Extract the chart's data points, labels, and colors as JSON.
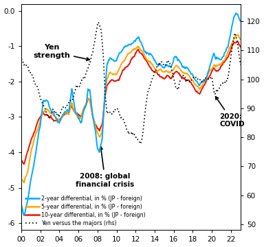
{
  "xlim": [
    2000,
    2023
  ],
  "ylim_left": [
    -6.2,
    0.2
  ],
  "ylim_right": [
    48,
    126
  ],
  "xticks": [
    2000,
    2002,
    2004,
    2006,
    2008,
    2010,
    2012,
    2014,
    2016,
    2018,
    2020,
    2022
  ],
  "xticklabels": [
    "00",
    "02",
    "04",
    "06",
    "08",
    "10",
    "12",
    "14",
    "16",
    "18",
    "20",
    "22"
  ],
  "yticks_left": [
    0.0,
    -1.0,
    -2.0,
    -3.0,
    -4.0,
    -5.0,
    -6.0
  ],
  "yticks_right": [
    50,
    60,
    70,
    80,
    90,
    100,
    110,
    120
  ],
  "color_2yr": "#00AAFF",
  "color_5yr": "#FFA500",
  "color_10yr": "#EE1100",
  "color_yen": "#000000",
  "legend_entries": [
    "2-year differential, in % (JP - foreign)",
    "5-year differential, in % (JP - foreign)",
    "10-year differential, in % (JP - foreign)",
    "Yen versus the majors (rhs)"
  ],
  "diff2_pts": [
    [
      2000.0,
      -5.5
    ],
    [
      2000.3,
      -5.8
    ],
    [
      2000.7,
      -5.3
    ],
    [
      2001.0,
      -4.8
    ],
    [
      2001.5,
      -4.0
    ],
    [
      2002.0,
      -3.2
    ],
    [
      2002.3,
      -2.6
    ],
    [
      2002.7,
      -2.5
    ],
    [
      2003.0,
      -2.7
    ],
    [
      2003.5,
      -3.0
    ],
    [
      2004.0,
      -3.2
    ],
    [
      2004.3,
      -3.0
    ],
    [
      2004.5,
      -2.9
    ],
    [
      2004.8,
      -2.8
    ],
    [
      2005.0,
      -2.9
    ],
    [
      2005.3,
      -2.2
    ],
    [
      2005.7,
      -2.9
    ],
    [
      2006.0,
      -3.0
    ],
    [
      2006.3,
      -3.1
    ],
    [
      2006.5,
      -2.8
    ],
    [
      2006.8,
      -2.6
    ],
    [
      2007.0,
      -2.2
    ],
    [
      2007.2,
      -2.3
    ],
    [
      2007.5,
      -3.0
    ],
    [
      2007.8,
      -3.4
    ],
    [
      2008.0,
      -3.9
    ],
    [
      2008.2,
      -4.0
    ],
    [
      2008.5,
      -3.6
    ],
    [
      2008.8,
      -2.2
    ],
    [
      2009.0,
      -1.5
    ],
    [
      2009.3,
      -1.3
    ],
    [
      2009.7,
      -1.4
    ],
    [
      2010.0,
      -1.4
    ],
    [
      2010.3,
      -1.2
    ],
    [
      2010.7,
      -1.1
    ],
    [
      2011.0,
      -1.0
    ],
    [
      2011.3,
      -0.95
    ],
    [
      2011.7,
      -0.9
    ],
    [
      2012.0,
      -0.85
    ],
    [
      2012.3,
      -0.75
    ],
    [
      2012.5,
      -0.9
    ],
    [
      2012.8,
      -1.0
    ],
    [
      2013.0,
      -1.1
    ],
    [
      2013.3,
      -1.2
    ],
    [
      2013.7,
      -1.3
    ],
    [
      2014.0,
      -1.4
    ],
    [
      2014.3,
      -1.5
    ],
    [
      2014.7,
      -1.55
    ],
    [
      2015.0,
      -1.6
    ],
    [
      2015.3,
      -1.5
    ],
    [
      2015.7,
      -1.55
    ],
    [
      2016.0,
      -1.4
    ],
    [
      2016.3,
      -1.3
    ],
    [
      2016.5,
      -1.35
    ],
    [
      2016.8,
      -1.5
    ],
    [
      2017.0,
      -1.55
    ],
    [
      2017.3,
      -1.6
    ],
    [
      2017.7,
      -1.65
    ],
    [
      2018.0,
      -1.8
    ],
    [
      2018.3,
      -2.0
    ],
    [
      2018.7,
      -2.1
    ],
    [
      2019.0,
      -2.0
    ],
    [
      2019.3,
      -1.9
    ],
    [
      2019.7,
      -1.6
    ],
    [
      2020.0,
      -1.4
    ],
    [
      2020.2,
      -1.2
    ],
    [
      2020.4,
      -1.4
    ],
    [
      2020.7,
      -1.3
    ],
    [
      2021.0,
      -1.35
    ],
    [
      2021.3,
      -1.2
    ],
    [
      2021.7,
      -1.0
    ],
    [
      2022.0,
      -0.6
    ],
    [
      2022.3,
      -0.2
    ],
    [
      2022.5,
      -0.05
    ],
    [
      2022.7,
      -0.1
    ],
    [
      2023.0,
      -0.3
    ]
  ],
  "diff5_pts": [
    [
      2000.0,
      -4.7
    ],
    [
      2000.3,
      -4.9
    ],
    [
      2000.7,
      -4.5
    ],
    [
      2001.0,
      -4.0
    ],
    [
      2001.5,
      -3.5
    ],
    [
      2002.0,
      -3.1
    ],
    [
      2002.3,
      -2.8
    ],
    [
      2002.7,
      -2.8
    ],
    [
      2003.0,
      -2.9
    ],
    [
      2003.5,
      -3.0
    ],
    [
      2004.0,
      -3.1
    ],
    [
      2004.3,
      -3.0
    ],
    [
      2004.5,
      -2.95
    ],
    [
      2004.8,
      -2.9
    ],
    [
      2005.0,
      -2.95
    ],
    [
      2005.3,
      -2.6
    ],
    [
      2005.7,
      -2.9
    ],
    [
      2006.0,
      -3.0
    ],
    [
      2006.3,
      -3.0
    ],
    [
      2006.5,
      -2.8
    ],
    [
      2006.8,
      -2.6
    ],
    [
      2007.0,
      -2.4
    ],
    [
      2007.2,
      -2.5
    ],
    [
      2007.5,
      -3.0
    ],
    [
      2007.8,
      -3.3
    ],
    [
      2008.0,
      -3.5
    ],
    [
      2008.2,
      -3.6
    ],
    [
      2008.5,
      -3.4
    ],
    [
      2008.8,
      -2.3
    ],
    [
      2009.0,
      -1.9
    ],
    [
      2009.3,
      -1.7
    ],
    [
      2009.7,
      -1.8
    ],
    [
      2010.0,
      -1.8
    ],
    [
      2010.3,
      -1.6
    ],
    [
      2010.7,
      -1.4
    ],
    [
      2011.0,
      -1.3
    ],
    [
      2011.3,
      -1.2
    ],
    [
      2011.7,
      -1.1
    ],
    [
      2012.0,
      -1.05
    ],
    [
      2012.3,
      -1.0
    ],
    [
      2012.5,
      -1.1
    ],
    [
      2012.8,
      -1.2
    ],
    [
      2013.0,
      -1.3
    ],
    [
      2013.3,
      -1.4
    ],
    [
      2013.7,
      -1.5
    ],
    [
      2014.0,
      -1.6
    ],
    [
      2014.3,
      -1.65
    ],
    [
      2014.7,
      -1.7
    ],
    [
      2015.0,
      -1.75
    ],
    [
      2015.3,
      -1.7
    ],
    [
      2015.7,
      -1.75
    ],
    [
      2016.0,
      -1.65
    ],
    [
      2016.3,
      -1.55
    ],
    [
      2016.5,
      -1.6
    ],
    [
      2016.8,
      -1.7
    ],
    [
      2017.0,
      -1.75
    ],
    [
      2017.3,
      -1.8
    ],
    [
      2017.7,
      -1.85
    ],
    [
      2018.0,
      -1.95
    ],
    [
      2018.3,
      -2.1
    ],
    [
      2018.7,
      -2.2
    ],
    [
      2019.0,
      -2.1
    ],
    [
      2019.3,
      -2.0
    ],
    [
      2019.7,
      -1.75
    ],
    [
      2020.0,
      -1.6
    ],
    [
      2020.2,
      -1.5
    ],
    [
      2020.4,
      -1.6
    ],
    [
      2020.7,
      -1.5
    ],
    [
      2021.0,
      -1.5
    ],
    [
      2021.3,
      -1.4
    ],
    [
      2021.7,
      -1.2
    ],
    [
      2022.0,
      -1.0
    ],
    [
      2022.3,
      -0.8
    ],
    [
      2022.5,
      -0.7
    ],
    [
      2022.7,
      -0.65
    ],
    [
      2023.0,
      -0.8
    ]
  ],
  "diff10_pts": [
    [
      2000.0,
      -4.2
    ],
    [
      2000.3,
      -4.3
    ],
    [
      2000.7,
      -4.0
    ],
    [
      2001.0,
      -3.7
    ],
    [
      2001.5,
      -3.3
    ],
    [
      2002.0,
      -3.0
    ],
    [
      2002.3,
      -2.85
    ],
    [
      2002.7,
      -2.9
    ],
    [
      2003.0,
      -3.0
    ],
    [
      2003.5,
      -3.1
    ],
    [
      2004.0,
      -3.1
    ],
    [
      2004.3,
      -3.0
    ],
    [
      2004.5,
      -2.95
    ],
    [
      2004.8,
      -2.9
    ],
    [
      2005.0,
      -2.9
    ],
    [
      2005.3,
      -2.7
    ],
    [
      2005.7,
      -2.9
    ],
    [
      2006.0,
      -2.95
    ],
    [
      2006.3,
      -3.0
    ],
    [
      2006.5,
      -2.85
    ],
    [
      2006.8,
      -2.65
    ],
    [
      2007.0,
      -2.5
    ],
    [
      2007.2,
      -2.55
    ],
    [
      2007.5,
      -3.0
    ],
    [
      2007.8,
      -3.2
    ],
    [
      2008.0,
      -3.3
    ],
    [
      2008.2,
      -3.35
    ],
    [
      2008.5,
      -3.2
    ],
    [
      2008.8,
      -2.4
    ],
    [
      2009.0,
      -2.1
    ],
    [
      2009.3,
      -1.95
    ],
    [
      2009.7,
      -2.0
    ],
    [
      2010.0,
      -2.0
    ],
    [
      2010.3,
      -1.9
    ],
    [
      2010.7,
      -1.7
    ],
    [
      2011.0,
      -1.6
    ],
    [
      2011.3,
      -1.5
    ],
    [
      2011.7,
      -1.35
    ],
    [
      2012.0,
      -1.2
    ],
    [
      2012.3,
      -1.1
    ],
    [
      2012.5,
      -1.2
    ],
    [
      2012.8,
      -1.3
    ],
    [
      2013.0,
      -1.4
    ],
    [
      2013.3,
      -1.5
    ],
    [
      2013.7,
      -1.65
    ],
    [
      2014.0,
      -1.75
    ],
    [
      2014.3,
      -1.8
    ],
    [
      2014.7,
      -1.85
    ],
    [
      2015.0,
      -1.9
    ],
    [
      2015.3,
      -1.85
    ],
    [
      2015.7,
      -1.9
    ],
    [
      2016.0,
      -1.8
    ],
    [
      2016.3,
      -1.7
    ],
    [
      2016.5,
      -1.75
    ],
    [
      2016.8,
      -1.85
    ],
    [
      2017.0,
      -1.9
    ],
    [
      2017.3,
      -1.95
    ],
    [
      2017.7,
      -2.0
    ],
    [
      2018.0,
      -2.1
    ],
    [
      2018.3,
      -2.25
    ],
    [
      2018.7,
      -2.35
    ],
    [
      2019.0,
      -2.2
    ],
    [
      2019.3,
      -2.05
    ],
    [
      2019.7,
      -1.85
    ],
    [
      2020.0,
      -1.7
    ],
    [
      2020.2,
      -1.6
    ],
    [
      2020.4,
      -1.7
    ],
    [
      2020.7,
      -1.65
    ],
    [
      2021.0,
      -1.6
    ],
    [
      2021.3,
      -1.5
    ],
    [
      2021.7,
      -1.3
    ],
    [
      2022.0,
      -1.1
    ],
    [
      2022.3,
      -0.95
    ],
    [
      2022.5,
      -0.9
    ],
    [
      2022.7,
      -0.85
    ],
    [
      2023.0,
      -1.0
    ]
  ],
  "yen_pts": [
    [
      2000.0,
      107
    ],
    [
      2000.3,
      105
    ],
    [
      2000.7,
      104
    ],
    [
      2001.0,
      102
    ],
    [
      2001.3,
      99
    ],
    [
      2001.7,
      97
    ],
    [
      2002.0,
      94
    ],
    [
      2002.3,
      91
    ],
    [
      2002.5,
      89
    ],
    [
      2002.7,
      87
    ],
    [
      2003.0,
      87
    ],
    [
      2003.3,
      89
    ],
    [
      2003.7,
      88
    ],
    [
      2004.0,
      88
    ],
    [
      2004.3,
      90
    ],
    [
      2004.7,
      91
    ],
    [
      2005.0,
      92
    ],
    [
      2005.3,
      93
    ],
    [
      2005.7,
      96
    ],
    [
      2006.0,
      97
    ],
    [
      2006.3,
      99
    ],
    [
      2006.7,
      101
    ],
    [
      2007.0,
      103
    ],
    [
      2007.3,
      107
    ],
    [
      2007.5,
      110
    ],
    [
      2007.7,
      114
    ],
    [
      2007.9,
      117
    ],
    [
      2008.0,
      119
    ],
    [
      2008.2,
      119
    ],
    [
      2008.4,
      116
    ],
    [
      2008.6,
      108
    ],
    [
      2008.8,
      95
    ],
    [
      2009.0,
      88
    ],
    [
      2009.3,
      89
    ],
    [
      2009.7,
      89
    ],
    [
      2010.0,
      90
    ],
    [
      2010.3,
      88
    ],
    [
      2010.7,
      86
    ],
    [
      2011.0,
      84
    ],
    [
      2011.3,
      82
    ],
    [
      2011.7,
      81
    ],
    [
      2012.0,
      80
    ],
    [
      2012.3,
      79
    ],
    [
      2012.5,
      78
    ],
    [
      2012.7,
      80
    ],
    [
      2013.0,
      88
    ],
    [
      2013.3,
      96
    ],
    [
      2013.7,
      99
    ],
    [
      2014.0,
      102
    ],
    [
      2014.3,
      104
    ],
    [
      2014.7,
      106
    ],
    [
      2015.0,
      105
    ],
    [
      2015.3,
      106
    ],
    [
      2015.7,
      104
    ],
    [
      2016.0,
      100
    ],
    [
      2016.3,
      97
    ],
    [
      2016.5,
      96
    ],
    [
      2016.7,
      100
    ],
    [
      2017.0,
      101
    ],
    [
      2017.3,
      100
    ],
    [
      2017.7,
      99
    ],
    [
      2018.0,
      100
    ],
    [
      2018.3,
      101
    ],
    [
      2018.7,
      100
    ],
    [
      2019.0,
      100
    ],
    [
      2019.3,
      100
    ],
    [
      2019.7,
      100
    ],
    [
      2020.0,
      100
    ],
    [
      2020.2,
      96
    ],
    [
      2020.3,
      95
    ],
    [
      2020.5,
      97
    ],
    [
      2020.7,
      97
    ],
    [
      2021.0,
      98
    ],
    [
      2021.3,
      99
    ],
    [
      2021.7,
      100
    ],
    [
      2022.0,
      108
    ],
    [
      2022.2,
      113
    ],
    [
      2022.4,
      116
    ],
    [
      2022.6,
      114
    ],
    [
      2022.8,
      110
    ],
    [
      2023.0,
      105
    ]
  ]
}
